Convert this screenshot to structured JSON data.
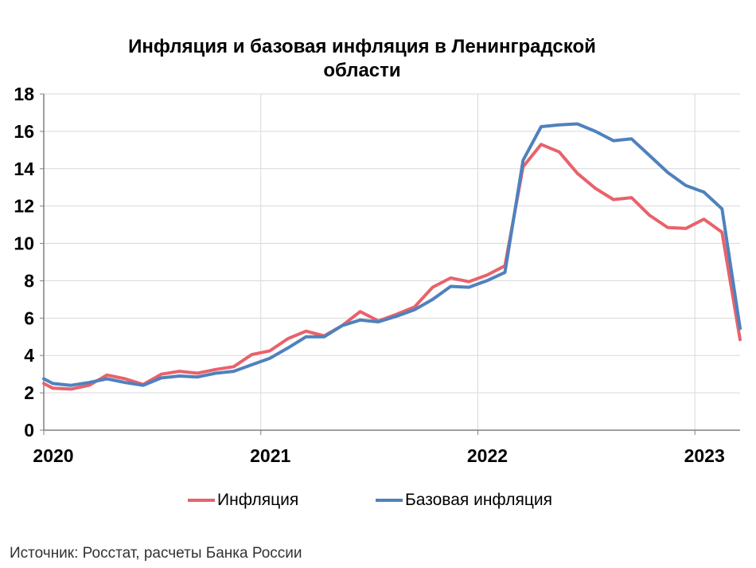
{
  "title_line1": "Инфляция и базовая инфляция в Ленинградской",
  "title_line2": "области",
  "source": "Источник: Росстат, расчеты Банка России",
  "colors": {
    "inflation": "#e8626b",
    "core": "#4f81bd",
    "grid": "#d9d9d9",
    "axis": "#808080"
  },
  "chart_data": {
    "type": "line",
    "title": "Инфляция и базовая инфляция в Ленинградской области",
    "ylim": [
      0,
      18
    ],
    "yticks": [
      0,
      2,
      4,
      6,
      8,
      10,
      12,
      14,
      16,
      18
    ],
    "xlim": [
      0,
      38.5
    ],
    "xticks": [
      {
        "pos": 0,
        "label": "2020"
      },
      {
        "pos": 12,
        "label": "2021"
      },
      {
        "pos": 24,
        "label": "2022"
      },
      {
        "pos": 36,
        "label": "2023"
      }
    ],
    "grid": true,
    "legend_position": "bottom",
    "x": [
      0,
      0.5,
      1.5,
      2.5,
      3.5,
      4.5,
      5.5,
      6.5,
      7.5,
      8.5,
      9.5,
      10.5,
      11.5,
      12.5,
      13.5,
      14.5,
      15.5,
      16.5,
      17.5,
      18.5,
      19.5,
      20.5,
      21.5,
      22.5,
      23.5,
      24.5,
      25.5,
      26.5,
      27.5,
      28.5,
      29.5,
      30.5,
      31.5,
      32.5,
      33.5,
      34.5,
      35.5,
      36.5,
      37.5,
      38.5
    ],
    "series": [
      {
        "name": "Инфляция",
        "color": "#e8626b",
        "values": [
          2.5,
          2.25,
          2.2,
          2.4,
          2.95,
          2.75,
          2.45,
          3.0,
          3.15,
          3.05,
          3.25,
          3.4,
          4.05,
          4.25,
          4.9,
          5.3,
          5.05,
          5.6,
          6.35,
          5.85,
          6.2,
          6.6,
          7.65,
          8.15,
          7.95,
          8.3,
          8.8,
          14.1,
          15.3,
          14.9,
          13.75,
          12.95,
          12.35,
          12.45,
          11.5,
          10.85,
          10.8,
          11.3,
          10.6,
          4.85
        ]
      },
      {
        "name": "Базовая инфляция",
        "color": "#4f81bd",
        "values": [
          2.75,
          2.5,
          2.4,
          2.55,
          2.75,
          2.55,
          2.4,
          2.8,
          2.9,
          2.85,
          3.05,
          3.15,
          3.5,
          3.85,
          4.4,
          5.0,
          5.0,
          5.6,
          5.9,
          5.8,
          6.1,
          6.45,
          7.0,
          7.7,
          7.65,
          8.0,
          8.45,
          14.45,
          16.25,
          16.35,
          16.4,
          16.0,
          15.5,
          15.6,
          14.7,
          13.8,
          13.1,
          12.75,
          11.85,
          5.45
        ]
      }
    ]
  }
}
